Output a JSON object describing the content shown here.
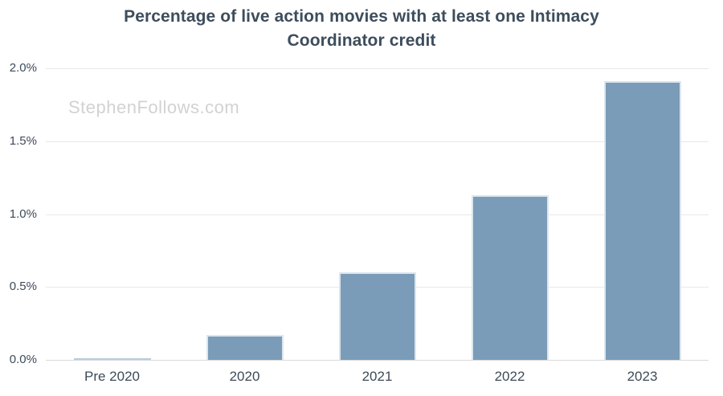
{
  "title": {
    "text": "Percentage of live action movies with at least one Intimacy Coordinator credit",
    "lines": [
      "Percentage of live action movies with at least one Intimacy",
      "Coordinator credit"
    ],
    "color": "#3d4d5c"
  },
  "watermark": {
    "text": "StephenFollows.com",
    "color": "#d2d2d2"
  },
  "chart_data": {
    "type": "bar",
    "title": "Percentage of live action movies with at least one Intimacy Coordinator credit",
    "categories": [
      "Pre 2020",
      "2020",
      "2021",
      "2022",
      "2023"
    ],
    "values": [
      0.01,
      0.17,
      0.6,
      1.13,
      1.91
    ],
    "value_unit": "%",
    "xlabel": "",
    "ylabel": "",
    "ylim": [
      0,
      2.0
    ],
    "ytick_step": 0.5,
    "ytick_labels": [
      "0.0%",
      "0.5%",
      "1.0%",
      "1.5%",
      "2.0%"
    ],
    "grid": true,
    "legend": false,
    "colors": {
      "bar_fill": "#7a9cb8",
      "bar_border": "#dce6ee",
      "tiny_bar_fill": "#b9cdda",
      "gridline": "#e8e8e8",
      "axis_line": "#dadada",
      "tick_label": "#3d4b59"
    }
  }
}
